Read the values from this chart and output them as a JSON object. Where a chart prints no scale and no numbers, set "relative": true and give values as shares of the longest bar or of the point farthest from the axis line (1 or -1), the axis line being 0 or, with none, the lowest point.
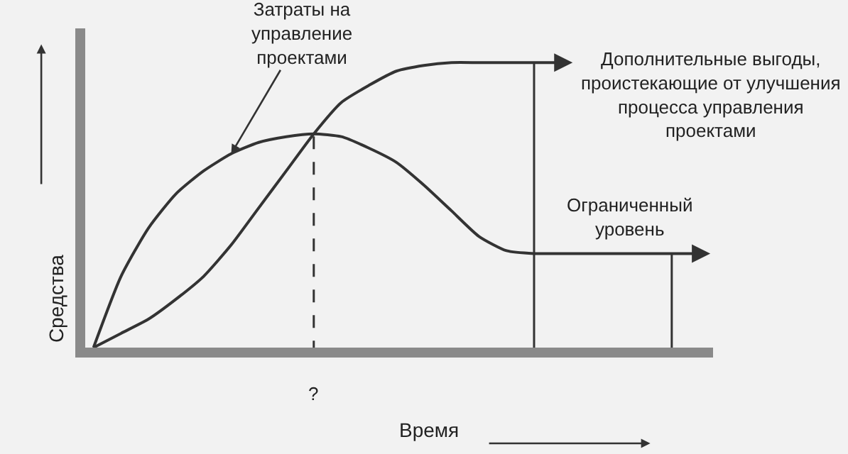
{
  "chart_data": {
    "type": "line",
    "relative": true,
    "xlabel": "Время",
    "ylabel": "Средства",
    "categories": [
      null,
      null,
      null,
      null,
      null,
      null,
      null,
      null,
      null,
      null,
      null,
      null,
      null,
      null,
      null,
      null,
      null,
      null,
      null,
      null,
      null,
      null,
      null
    ],
    "series": [
      {
        "name": "Затраты на управление проектами",
        "color": "#333333",
        "values": [
          0,
          0.25,
          0.42,
          0.54,
          0.62,
          0.68,
          0.72,
          0.74,
          0.75,
          0.74,
          0.7,
          0.65,
          0.57,
          0.48,
          0.39,
          0.34,
          0.33,
          0.33,
          0.33,
          0.33,
          0.33,
          0.33,
          0.33
        ]
      },
      {
        "name": "Дополнительные выгоды, проистекающие от улучшения процесса управления проектами",
        "color": "#333333",
        "values": [
          0,
          0.05,
          0.1,
          0.17,
          0.25,
          0.36,
          0.49,
          0.62,
          0.75,
          0.86,
          0.92,
          0.97,
          0.99,
          1,
          1,
          1,
          1,
          1,
          null,
          null,
          null,
          null,
          null
        ]
      }
    ],
    "annotations": [
      "?",
      {
        "text": "Ограниченный уровень",
        "y": 0.33
      }
    ],
    "line_style": "solid",
    "marker": "none",
    "grid": false,
    "legend": false
  }
}
